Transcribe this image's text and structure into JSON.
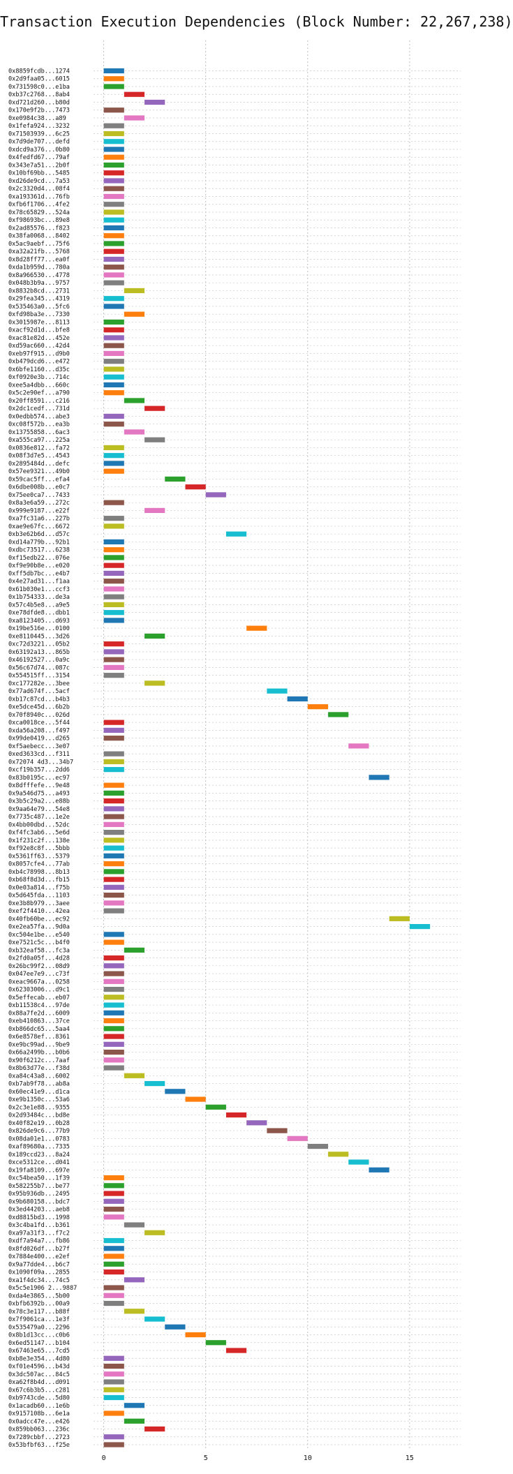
{
  "chart_data": {
    "type": "gantt",
    "title": "Transaction Execution Dependencies (Block Number: 22,267,238)",
    "xlabel": "",
    "ylabel": "",
    "xlim": [
      -0.5,
      17.5
    ],
    "xticks": [
      0,
      5,
      10,
      15
    ],
    "grid": true,
    "colors": [
      "#1f77b4",
      "#ff7f0e",
      "#2ca02c",
      "#d62728",
      "#9467bd",
      "#8c564b",
      "#e377c2",
      "#7f7f7f",
      "#bcbd22",
      "#17becf"
    ],
    "transactions": [
      {
        "label": "0x8859fcdb...1274",
        "start": 0
      },
      {
        "label": "0x2d9faa05...6015",
        "start": 0
      },
      {
        "label": "0x731598c0...e1ba",
        "start": 0
      },
      {
        "label": "0xb37c2768...8ab4",
        "start": 1
      },
      {
        "label": "0xd721d260...b80d",
        "start": 2
      },
      {
        "label": "0x170e9f2b...7473",
        "start": 0
      },
      {
        "label": "0xe0984c38...a89",
        "start": 1
      },
      {
        "label": "0x1fefa924...3232",
        "start": 0
      },
      {
        "label": "0x71503939...6c25",
        "start": 0
      },
      {
        "label": "0x7d9de707...defd",
        "start": 0
      },
      {
        "label": "0xdcd9a376...0b80",
        "start": 0
      },
      {
        "label": "0x4fedfd67...79af",
        "start": 0
      },
      {
        "label": "0x343e7a51...2b0f",
        "start": 0
      },
      {
        "label": "0x10bf69bb...5485",
        "start": 0
      },
      {
        "label": "0xd26de9cd...7a53",
        "start": 0
      },
      {
        "label": "0x2c3320d4...08f4",
        "start": 0
      },
      {
        "label": "0xa193361d...76fb",
        "start": 0
      },
      {
        "label": "0xfb6f1706...4fe2",
        "start": 0
      },
      {
        "label": "0x78c65829...524a",
        "start": 0
      },
      {
        "label": "0xf98693bc...89e8",
        "start": 0
      },
      {
        "label": "0x2ad85576...f823",
        "start": 0
      },
      {
        "label": "0x38fa0068...8402",
        "start": 0
      },
      {
        "label": "0x5ac9aebf...75f6",
        "start": 0
      },
      {
        "label": "0xa32a21fb...5768",
        "start": 0
      },
      {
        "label": "0x8d28ff77...ea0f",
        "start": 0
      },
      {
        "label": "0xda1b959d...780a",
        "start": 0
      },
      {
        "label": "0x8a966530...4778",
        "start": 0
      },
      {
        "label": "0x048b3b9a...9757",
        "start": 0
      },
      {
        "label": "0x8832b8cd...2731",
        "start": 1
      },
      {
        "label": "0x29fea345...4319",
        "start": 0
      },
      {
        "label": "0x535463a0...5fc6",
        "start": 0
      },
      {
        "label": "0xfd98ba3e...7330",
        "start": 1
      },
      {
        "label": "0x3015987e...8113",
        "start": 0
      },
      {
        "label": "0xacf92d1d...bfe8",
        "start": 0
      },
      {
        "label": "0xac81e82d...452e",
        "start": 0
      },
      {
        "label": "0xd59ac660...42d4",
        "start": 0
      },
      {
        "label": "0xeb97f915...d9b0",
        "start": 0
      },
      {
        "label": "0xb479dcd6...e472",
        "start": 0
      },
      {
        "label": "0x6bfe1160...d35c",
        "start": 0
      },
      {
        "label": "0xf0920e3b...714c",
        "start": 0
      },
      {
        "label": "0xee5a4dbb...660c",
        "start": 0
      },
      {
        "label": "0x5c2e90ef...a790",
        "start": 0
      },
      {
        "label": "0x20ff8591...c216",
        "start": 1
      },
      {
        "label": "0x2dc1cedf...731d",
        "start": 2
      },
      {
        "label": "0x0edbb574...abe3",
        "start": 0
      },
      {
        "label": "0xc08f572b...ea3b",
        "start": 0
      },
      {
        "label": "0x13755858...6ac3",
        "start": 1
      },
      {
        "label": "0xa555ca97...225a",
        "start": 2
      },
      {
        "label": "0x0836e812...fa72",
        "start": 0
      },
      {
        "label": "0x08f3d7e5...4543",
        "start": 0
      },
      {
        "label": "0x2895484d...defc",
        "start": 0
      },
      {
        "label": "0x57ee9321...49b0",
        "start": 0
      },
      {
        "label": "0x59cac5ff...efa4",
        "start": 3
      },
      {
        "label": "0x6dbe008b...e0c7",
        "start": 4
      },
      {
        "label": "0x75ee0ca7...7433",
        "start": 5
      },
      {
        "label": "0x8a3e6a59...272c",
        "start": 0
      },
      {
        "label": "0x999e9187...e22f",
        "start": 2
      },
      {
        "label": "0xa7fc31a6...227b",
        "start": 0
      },
      {
        "label": "0xae9e67fc...6672",
        "start": 0
      },
      {
        "label": "0xb3e62b6d...d57c",
        "start": 6
      },
      {
        "label": "0xd14a779b...92b1",
        "start": 0
      },
      {
        "label": "0xdbc73517...6238",
        "start": 0
      },
      {
        "label": "0xf15edb22...076e",
        "start": 0
      },
      {
        "label": "0xf9e90b8e...e020",
        "start": 0
      },
      {
        "label": "0xff5db7bc...e4b7",
        "start": 0
      },
      {
        "label": "0x4e27ad31...f1aa",
        "start": 0
      },
      {
        "label": "0x61b030e1...ccf3",
        "start": 0
      },
      {
        "label": "0x1b754333...de3a",
        "start": 0
      },
      {
        "label": "0x57c4b5e8...a9e5",
        "start": 0
      },
      {
        "label": "0xe78dfde8...dbb1",
        "start": 0
      },
      {
        "label": "0xa8123405...d693",
        "start": 0
      },
      {
        "label": "0x19be516e...0100",
        "start": 7
      },
      {
        "label": "0xe8110445...3d26",
        "start": 2
      },
      {
        "label": "0xc72d3221...05b2",
        "start": 0
      },
      {
        "label": "0x63192a13...865b",
        "start": 0
      },
      {
        "label": "0x46192527...0a9c",
        "start": 0
      },
      {
        "label": "0x56c67d74...087c",
        "start": 0
      },
      {
        "label": "0x554515ff...3154",
        "start": 0
      },
      {
        "label": "0xc177282e...3bee",
        "start": 2
      },
      {
        "label": "0x77ad674f...5acf",
        "start": 8
      },
      {
        "label": "0xb17c87cd...b4b3",
        "start": 9
      },
      {
        "label": "0xe5dce45d...6b2b",
        "start": 10
      },
      {
        "label": "0x70f8940c...026d",
        "start": 11
      },
      {
        "label": "0xca0018ce...5f44",
        "start": 0
      },
      {
        "label": "0xda56a208...f497",
        "start": 0
      },
      {
        "label": "0x99de0419...d265",
        "start": 0
      },
      {
        "label": "0xf5aebecc...3e07",
        "start": 12
      },
      {
        "label": "0xed3633cd...f311",
        "start": 0
      },
      {
        "label": "0x72074 4d3...34b7",
        "start": 0
      },
      {
        "label": "0xcf19b357...2dd6",
        "start": 0
      },
      {
        "label": "0x83b0195c...ec97",
        "start": 13
      },
      {
        "label": "0x8dfffefe...9e48",
        "start": 0
      },
      {
        "label": "0x9a546d75...a493",
        "start": 0
      },
      {
        "label": "0x3b5c29a2...e88b",
        "start": 0
      },
      {
        "label": "0x9aa64e79...54e8",
        "start": 0
      },
      {
        "label": "0x7735c487...1e2e",
        "start": 0
      },
      {
        "label": "0x4bb00dbd...52dc",
        "start": 0
      },
      {
        "label": "0xf4fc3ab6...5e6d",
        "start": 0
      },
      {
        "label": "0x1f231c2f...138e",
        "start": 0
      },
      {
        "label": "0xf92e8c8f...5bbb",
        "start": 0
      },
      {
        "label": "0x5361ff63...5379",
        "start": 0
      },
      {
        "label": "0x8057cfe4...77ab",
        "start": 0
      },
      {
        "label": "0xb4c78998...8b13",
        "start": 0
      },
      {
        "label": "0xb68f8d3d...fb15",
        "start": 0
      },
      {
        "label": "0x0e03a814...f75b",
        "start": 0
      },
      {
        "label": "0x5d645fda...1103",
        "start": 0
      },
      {
        "label": "0xe3b8b979...3aee",
        "start": 0
      },
      {
        "label": "0xef2f4410...42ea",
        "start": 0
      },
      {
        "label": "0x40fb60be...ec92",
        "start": 14
      },
      {
        "label": "0xe2ea57fa...9d0a",
        "start": 15
      },
      {
        "label": "0xc504e1be...e540",
        "start": 0
      },
      {
        "label": "0xe7521c5c...b4f0",
        "start": 0
      },
      {
        "label": "0xb32eaf58...fc3a",
        "start": 1
      },
      {
        "label": "0x2fd0a05f...4d28",
        "start": 0
      },
      {
        "label": "0x26bc99f2...08d9",
        "start": 0
      },
      {
        "label": "0x047ee7e9...c73f",
        "start": 0
      },
      {
        "label": "0xeac9667a...0258",
        "start": 0
      },
      {
        "label": "0x62303006...d9c1",
        "start": 0
      },
      {
        "label": "0x5effecab...eb07",
        "start": 0
      },
      {
        "label": "0xb11538c4...97de",
        "start": 0
      },
      {
        "label": "0x88a7fe2d...6009",
        "start": 0
      },
      {
        "label": "0xeb410863...37ce",
        "start": 0
      },
      {
        "label": "0xb866dc65...5aa4",
        "start": 0
      },
      {
        "label": "0x6e8578ef...8361",
        "start": 0
      },
      {
        "label": "0xe9bc99ad...9be9",
        "start": 0
      },
      {
        "label": "0x66a2499b...b0b6",
        "start": 0
      },
      {
        "label": "0x90f6212c...7aaf",
        "start": 0
      },
      {
        "label": "0x8b63d77e...f38d",
        "start": 0
      },
      {
        "label": "0xa84c43a8...6002",
        "start": 1
      },
      {
        "label": "0xb7ab9f78...ab8a",
        "start": 2
      },
      {
        "label": "0x60ec41e9...d1ca",
        "start": 3
      },
      {
        "label": "0xe9b1350c...53a6",
        "start": 4
      },
      {
        "label": "0x2c3e1e88...9355",
        "start": 5
      },
      {
        "label": "0x2d93484c...bd8e",
        "start": 6
      },
      {
        "label": "0x40f82e19...0b28",
        "start": 7
      },
      {
        "label": "0x826de9c6...77b9",
        "start": 8
      },
      {
        "label": "0x08da01e1...0783",
        "start": 9
      },
      {
        "label": "0xaf89680a...7335",
        "start": 10
      },
      {
        "label": "0x189ccd23...8a24",
        "start": 11
      },
      {
        "label": "0xce5312ce...d041",
        "start": 12
      },
      {
        "label": "0x19fa8109...697e",
        "start": 13
      },
      {
        "label": "0xc54bea50...1f39",
        "start": 0
      },
      {
        "label": "0x582255b7...be77",
        "start": 0
      },
      {
        "label": "0x95b936db...2495",
        "start": 0
      },
      {
        "label": "0x9b680158...bdc7",
        "start": 0
      },
      {
        "label": "0x3ed44203...aeb8",
        "start": 0
      },
      {
        "label": "0xd8815bd3...1998",
        "start": 0
      },
      {
        "label": "0x3c4ba1fd...b361",
        "start": 1
      },
      {
        "label": "0xa97a31f3...f7c2",
        "start": 2
      },
      {
        "label": "0xdf7a94a7...fb86",
        "start": 0
      },
      {
        "label": "0x8fd026df...b27f",
        "start": 0
      },
      {
        "label": "0x7884e400...e2ef",
        "start": 0
      },
      {
        "label": "0x9a77dde4...b6c7",
        "start": 0
      },
      {
        "label": "0x1090f09a...2855",
        "start": 0
      },
      {
        "label": "0xa1f4dc34...74c5",
        "start": 1
      },
      {
        "label": "0x5c5e1906 2...9887",
        "start": 0
      },
      {
        "label": "0xda4e3865...5b00",
        "start": 0
      },
      {
        "label": "0xbfb6392b...00a9",
        "start": 0
      },
      {
        "label": "0x78c3e117...b88f",
        "start": 1
      },
      {
        "label": "0x7f9061ca...1e3f",
        "start": 2
      },
      {
        "label": "0x535479a0...2296",
        "start": 3
      },
      {
        "label": "0x8b1d13cc...c0b6",
        "start": 4
      },
      {
        "label": "0x6ed51147...b104",
        "start": 5
      },
      {
        "label": "0x67463e65...7cd5",
        "start": 6
      },
      {
        "label": "0xb8e3e354...4d80",
        "start": 0
      },
      {
        "label": "0xf01e4596...b43d",
        "start": 0
      },
      {
        "label": "0x3dc507ac...84c5",
        "start": 0
      },
      {
        "label": "0xa62f8b4d...d091",
        "start": 0
      },
      {
        "label": "0x67c6b3b5...c281",
        "start": 0
      },
      {
        "label": "0xb9743cde...5d80",
        "start": 0
      },
      {
        "label": "0x1acadb60...1e6b",
        "start": 1
      },
      {
        "label": "0x9157108b...6e1a",
        "start": 0
      },
      {
        "label": "0x0adcc47e...e426",
        "start": 1
      },
      {
        "label": "0x859bb063...236c",
        "start": 2
      },
      {
        "label": "0x7289cbbf...2723",
        "start": 0
      },
      {
        "label": "0x53bfbf63...f25e",
        "start": 0
      }
    ]
  }
}
